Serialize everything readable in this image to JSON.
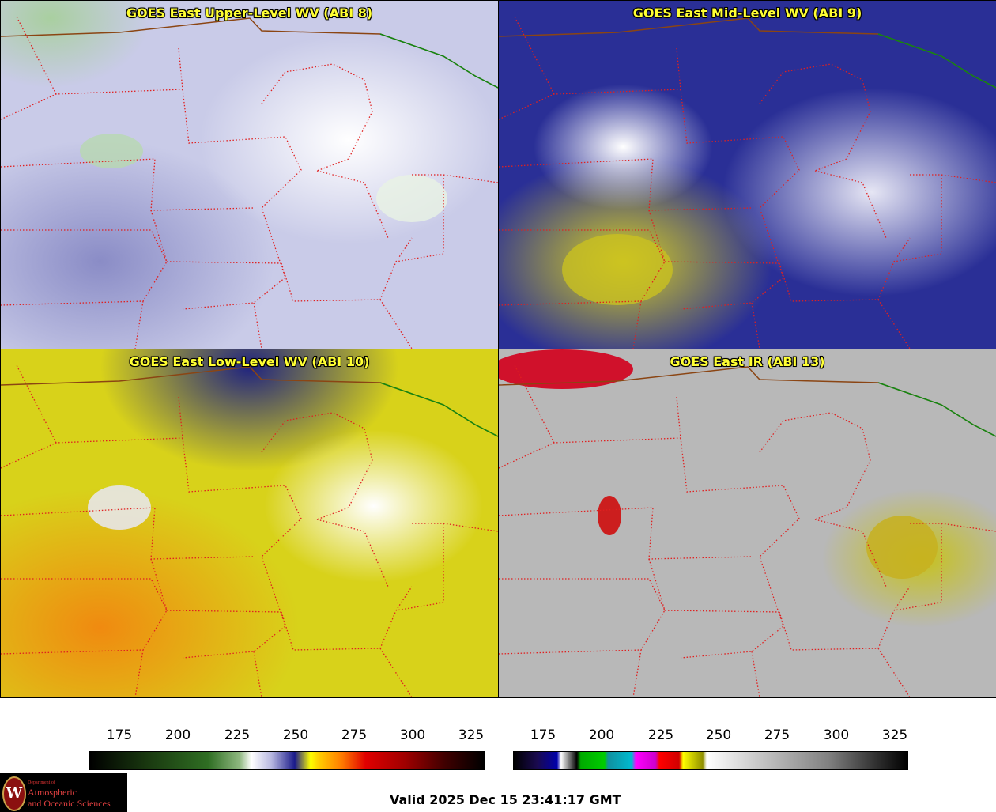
{
  "panels": [
    {
      "title": "GOES East Upper-Level WV (ABI 8)",
      "scheme": "upper"
    },
    {
      "title": "GOES East Mid-Level WV (ABI 9)",
      "scheme": "mid"
    },
    {
      "title": "GOES East Low-Level WV (ABI 10)",
      "scheme": "low"
    },
    {
      "title": "GOES East IR (ABI 13)",
      "scheme": "ir"
    }
  ],
  "colorbars": {
    "wv": {
      "ticks": [
        "175",
        "200",
        "225",
        "250",
        "275",
        "300",
        "325"
      ]
    },
    "ir": {
      "ticks": [
        "175",
        "200",
        "225",
        "250",
        "275",
        "300",
        "325"
      ]
    }
  },
  "colors": {
    "border_state": "#e02020",
    "border_country": "#8b4513",
    "coast": "#118811",
    "title": "#ffff33"
  },
  "logo": {
    "seal": "W",
    "dept": "Department of",
    "line1": "Atmospheric",
    "line2": "and Oceanic Sciences"
  },
  "footer": {
    "valid": "Valid 2025 Dec 15 23:41:17 GMT"
  }
}
